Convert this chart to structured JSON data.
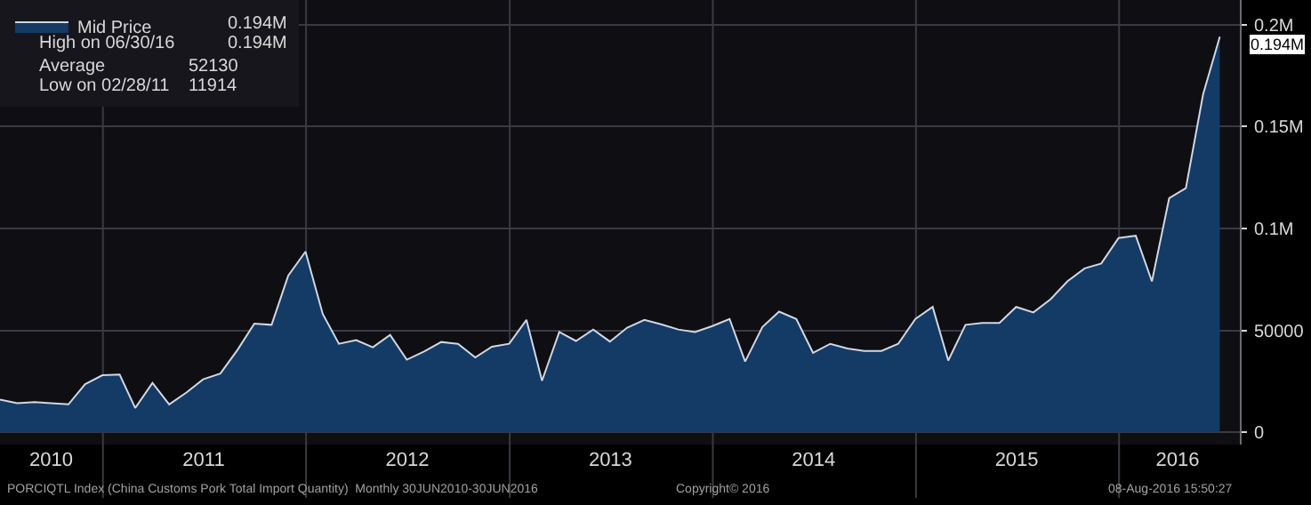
{
  "chart_data": {
    "type": "area",
    "x": [
      "2010-06-30",
      "2010-07-31",
      "2010-08-31",
      "2010-09-30",
      "2010-10-31",
      "2010-11-30",
      "2010-12-31",
      "2011-01-31",
      "2011-02-28",
      "2011-03-31",
      "2011-04-30",
      "2011-05-31",
      "2011-06-30",
      "2011-07-31",
      "2011-08-31",
      "2011-09-30",
      "2011-10-31",
      "2011-11-30",
      "2011-12-31",
      "2012-01-31",
      "2012-02-29",
      "2012-03-31",
      "2012-04-30",
      "2012-05-31",
      "2012-06-30",
      "2012-07-31",
      "2012-08-31",
      "2012-09-30",
      "2012-10-31",
      "2012-11-30",
      "2012-12-31",
      "2013-01-31",
      "2013-02-28",
      "2013-03-31",
      "2013-04-30",
      "2013-05-31",
      "2013-06-30",
      "2013-07-31",
      "2013-08-31",
      "2013-09-30",
      "2013-10-31",
      "2013-11-30",
      "2013-12-31",
      "2014-01-31",
      "2014-02-28",
      "2014-03-31",
      "2014-04-30",
      "2014-05-31",
      "2014-06-30",
      "2014-07-31",
      "2014-08-31",
      "2014-09-30",
      "2014-10-31",
      "2014-11-30",
      "2014-12-31",
      "2015-01-31",
      "2015-02-28",
      "2015-03-31",
      "2015-04-30",
      "2015-05-31",
      "2015-06-30",
      "2015-07-31",
      "2015-08-31",
      "2015-09-30",
      "2015-10-31",
      "2015-11-30",
      "2015-12-31",
      "2016-01-31",
      "2016-02-29",
      "2016-03-31",
      "2016-04-30",
      "2016-05-31",
      "2016-06-30"
    ],
    "series": [
      {
        "name": "Mid Price",
        "color": "#143a66",
        "values": [
          16000,
          14300,
          14800,
          14300,
          13700,
          23600,
          28000,
          28300,
          11914,
          24200,
          13700,
          19500,
          26000,
          28800,
          40500,
          53300,
          52700,
          76900,
          88600,
          58000,
          43400,
          45200,
          41700,
          47800,
          35600,
          39600,
          44300,
          43400,
          36700,
          42000,
          43400,
          55100,
          25300,
          49200,
          44800,
          50400,
          44500,
          51300,
          55100,
          53000,
          50400,
          49200,
          52100,
          55600,
          34700,
          51600,
          59200,
          55600,
          39000,
          43400,
          41100,
          39900,
          39900,
          43400,
          55600,
          61500,
          35200,
          52700,
          53600,
          53600,
          61500,
          58800,
          65300,
          74000,
          80400,
          82800,
          95300,
          96400,
          74000,
          114800,
          119700,
          165800,
          194000
        ]
      }
    ],
    "xlim": [
      "2010-06-30",
      "2016-08-05"
    ],
    "xticks": [
      {
        "value": "2010-09-30",
        "label": "2010"
      },
      {
        "value": "2011-01-01",
        "label": null
      },
      {
        "value": "2011-07-01",
        "label": "2011"
      },
      {
        "value": "2012-01-01",
        "label": null
      },
      {
        "value": "2012-07-01",
        "label": "2012"
      },
      {
        "value": "2013-01-01",
        "label": null
      },
      {
        "value": "2013-07-01",
        "label": "2013"
      },
      {
        "value": "2014-01-01",
        "label": null
      },
      {
        "value": "2014-07-01",
        "label": "2014"
      },
      {
        "value": "2015-01-01",
        "label": null
      },
      {
        "value": "2015-07-01",
        "label": "2015"
      },
      {
        "value": "2016-01-01",
        "label": null
      },
      {
        "value": "2016-04-15",
        "label": "2016"
      }
    ],
    "ylim": [
      -6000,
      212000
    ],
    "yticks": [
      0,
      50000,
      {
        "value": 100000,
        "label": "0.1M"
      },
      {
        "value": 150000,
        "label": "0.15M"
      },
      {
        "value": 200000,
        "label": "0.2M"
      }
    ],
    "grid": true,
    "legend": "top left",
    "annotations": [
      {
        "text": "0.194M",
        "x": "2016-06-30",
        "y": 194000
      },
      "0.194M",
      "High on 06/30/16",
      "0.194M",
      "Average",
      "52130",
      "Low on 02/28/11",
      "11914",
      "PORCIQTL Index (China Customs Pork Total Import Quantity)  Monthly 30JUN2010-30JUN2016",
      "Copyright© 2016",
      "08-Aug-2016 15:50:27"
    ]
  }
}
